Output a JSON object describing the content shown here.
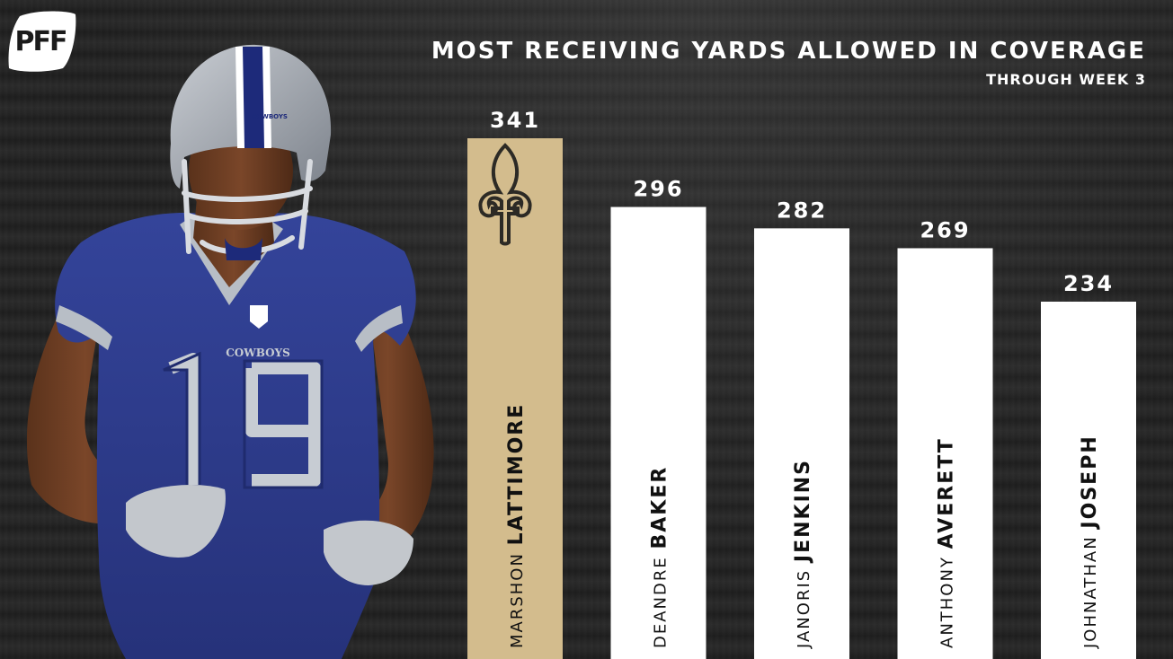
{
  "brand": {
    "logo": "PFF"
  },
  "chart_data": {
    "type": "bar",
    "title": "MOST RECEIVING YARDS ALLOWED IN COVERAGE",
    "subtitle": "THROUGH WEEK 3",
    "xlabel": "",
    "ylabel": "",
    "ylim": [
      0,
      430
    ],
    "grid": false,
    "categories": [
      {
        "first": "MARSHON",
        "last": "LATTIMORE"
      },
      {
        "first": "DEANDRE",
        "last": "BAKER"
      },
      {
        "first": "JANORIS",
        "last": "JENKINS"
      },
      {
        "first": "ANTHONY",
        "last": "AVERETT"
      },
      {
        "first": "JOHNATHAN",
        "last": "JOSEPH"
      }
    ],
    "values": [
      341,
      296,
      282,
      269,
      234
    ],
    "colors": [
      "#d3bc8d",
      "#ffffff",
      "#ffffff",
      "#ffffff",
      "#ffffff"
    ]
  },
  "image": {
    "subject": "football-player-photo",
    "jersey_text": "COWBOYS",
    "jersey_number": "19",
    "helmet_text": "COWBOYS",
    "colors": {
      "jersey": "#2c3a8c",
      "helmet": "#a7adb5",
      "stripe": "#1d2a7a",
      "skin": "#6b3d22"
    }
  }
}
